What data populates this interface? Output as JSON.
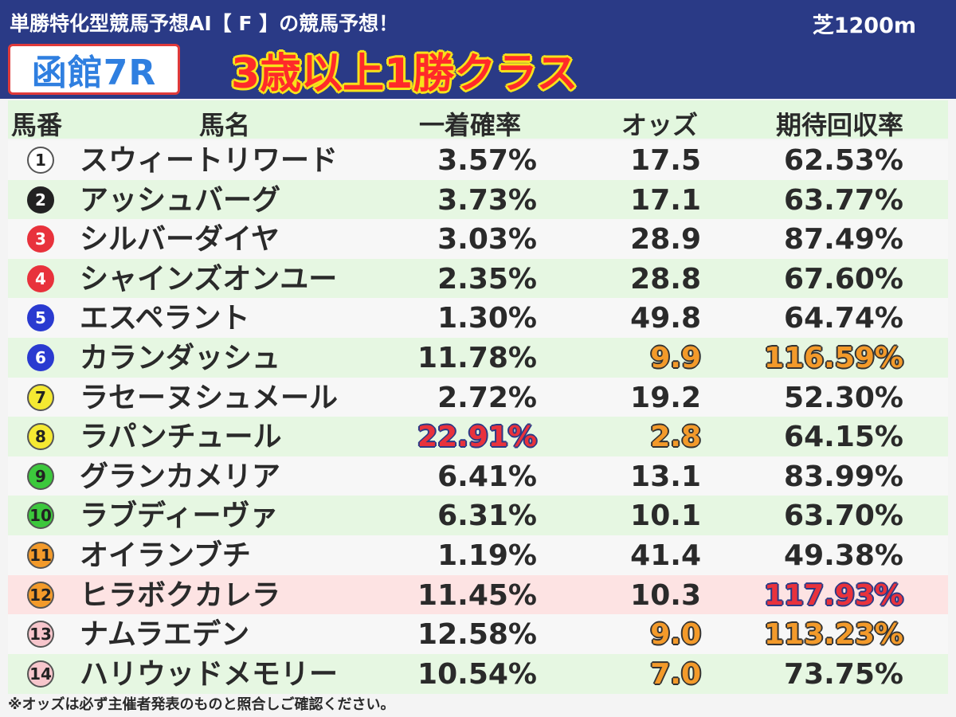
{
  "header": {
    "subtitle": "単勝特化型競馬予想AI【 F 】の競馬予想！",
    "distance": "芝1200m",
    "venue_race": "函館7R",
    "race_class": "3歳以上1勝クラス"
  },
  "columns": {
    "number": "馬番",
    "name": "馬名",
    "win_prob": "一着確率",
    "odds": "オッズ",
    "roi": "期待回収率"
  },
  "rows": [
    {
      "num": "1",
      "name": "スウィートリワード",
      "prob": "3.57%",
      "odds": "17.5",
      "roi": "62.53%",
      "badge_bg": "#ffffff",
      "badge_fg": "#222222",
      "badge_border": "#555555"
    },
    {
      "num": "2",
      "name": "アッシュバーグ",
      "prob": "3.73%",
      "odds": "17.1",
      "roi": "63.77%",
      "badge_bg": "#222222",
      "badge_fg": "#ffffff",
      "badge_border": "#222222"
    },
    {
      "num": "3",
      "name": "シルバーダイヤ",
      "prob": "3.03%",
      "odds": "28.9",
      "roi": "87.49%",
      "badge_bg": "#e8323c",
      "badge_fg": "#ffffff",
      "badge_border": "#e8323c"
    },
    {
      "num": "4",
      "name": "シャインズオンユー",
      "prob": "2.35%",
      "odds": "28.8",
      "roi": "67.60%",
      "badge_bg": "#e8323c",
      "badge_fg": "#ffffff",
      "badge_border": "#e8323c"
    },
    {
      "num": "5",
      "name": "エスペラント",
      "prob": "1.30%",
      "odds": "49.8",
      "roi": "64.74%",
      "badge_bg": "#2a3ad0",
      "badge_fg": "#ffffff",
      "badge_border": "#2a3ad0"
    },
    {
      "num": "6",
      "name": "カランダッシュ",
      "prob": "11.78%",
      "odds": "9.9",
      "roi": "116.59%",
      "badge_bg": "#2a3ad0",
      "badge_fg": "#ffffff",
      "badge_border": "#2a3ad0",
      "odds_hl": "orange",
      "roi_hl": "orange"
    },
    {
      "num": "7",
      "name": "ラセーヌシュメール",
      "prob": "2.72%",
      "odds": "19.2",
      "roi": "52.30%",
      "badge_bg": "#f5e932",
      "badge_fg": "#222222",
      "badge_border": "#555555"
    },
    {
      "num": "8",
      "name": "ラパンチュール",
      "prob": "22.91%",
      "odds": "2.8",
      "roi": "64.15%",
      "badge_bg": "#f5e932",
      "badge_fg": "#222222",
      "badge_border": "#555555",
      "prob_hl": "red",
      "odds_hl": "orange"
    },
    {
      "num": "9",
      "name": "グランカメリア",
      "prob": "6.41%",
      "odds": "13.1",
      "roi": "83.99%",
      "badge_bg": "#3cc83c",
      "badge_fg": "#222222",
      "badge_border": "#555555"
    },
    {
      "num": "10",
      "name": "ラブディーヴァ",
      "prob": "6.31%",
      "odds": "10.1",
      "roi": "63.70%",
      "badge_bg": "#3cc83c",
      "badge_fg": "#222222",
      "badge_border": "#555555"
    },
    {
      "num": "11",
      "name": "オイランブチ",
      "prob": "1.19%",
      "odds": "41.4",
      "roi": "49.38%",
      "badge_bg": "#f39a2a",
      "badge_fg": "#222222",
      "badge_border": "#555555"
    },
    {
      "num": "12",
      "name": "ヒラボクカレラ",
      "prob": "11.45%",
      "odds": "10.3",
      "roi": "117.93%",
      "badge_bg": "#f39a2a",
      "badge_fg": "#222222",
      "badge_border": "#555555",
      "roi_hl": "red",
      "row_style": "pink"
    },
    {
      "num": "13",
      "name": "ナムラエデン",
      "prob": "12.58%",
      "odds": "9.0",
      "roi": "113.23%",
      "badge_bg": "#f7c6cc",
      "badge_fg": "#222222",
      "badge_border": "#555555",
      "odds_hl": "orange",
      "roi_hl": "orange"
    },
    {
      "num": "14",
      "name": "ハリウッドメモリー",
      "prob": "10.54%",
      "odds": "7.0",
      "roi": "73.75%",
      "badge_bg": "#f7c6cc",
      "badge_fg": "#222222",
      "badge_border": "#555555",
      "odds_hl": "orange"
    }
  ],
  "footer_note": "※オッズは必ず主催者発表のものと照合しご確認ください。"
}
